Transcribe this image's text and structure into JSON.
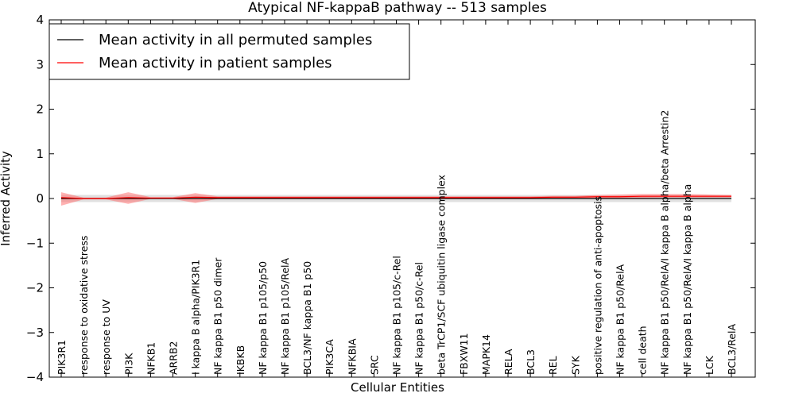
{
  "chart_data": {
    "type": "line",
    "title": "Atypical NF-kappaB pathway -- 513 samples",
    "xlabel": "Cellular Entities",
    "ylabel": "Inferred Activity",
    "ylim": [
      -4,
      4
    ],
    "yticks": [
      "−4",
      "−3",
      "−2",
      "−1",
      "0",
      "1",
      "2",
      "3",
      "4"
    ],
    "legend_position": "top-left",
    "zero_line": "dotted",
    "categories": [
      "PIK3R1",
      "response to oxidative stress",
      "response to UV",
      "PI3K",
      "NFKB1",
      "ARRB2",
      "I kappa B alpha/PIK3R1",
      "NF kappa B1 p50 dimer",
      "IKBKB",
      "NF kappa B1 p105/p50",
      "NF kappa B1 p105/RelA",
      "BCL3/NF kappa B1 p50",
      "PIK3CA",
      "NFKBIA",
      "SRC",
      "NF kappa B1 p105/c-Rel",
      "NF kappa B1 p50/c-Rel",
      "beta TrCP1/SCF ubiquitin ligase complex",
      "FBXW11",
      "MAPK14",
      "RELA",
      "BCL3",
      "REL",
      "SYK",
      "positive regulation of anti-apoptosis",
      "NF kappa B1 p50/RelA",
      "cell death",
      "NF kappa B1 p50/RelA/I kappa B alpha/beta Arrestin2",
      "NF kappa B1 p50/RelA/I kappa B alpha",
      "LCK",
      "BCL3/RelA"
    ],
    "series": [
      {
        "name": "Mean activity in all permuted samples",
        "color": "#000000",
        "values": [
          0,
          0,
          0,
          0,
          0,
          0,
          0,
          0,
          0,
          0,
          0,
          0,
          0,
          0,
          0,
          0,
          0,
          0,
          0,
          0,
          0,
          0,
          0,
          0,
          0,
          0,
          0,
          0,
          0,
          0,
          0
        ],
        "band_low": [
          -0.08,
          -0.08,
          -0.08,
          -0.08,
          -0.08,
          -0.08,
          -0.08,
          -0.08,
          -0.08,
          -0.08,
          -0.08,
          -0.08,
          -0.08,
          -0.08,
          -0.08,
          -0.08,
          -0.08,
          -0.08,
          -0.08,
          -0.08,
          -0.08,
          -0.08,
          -0.08,
          -0.08,
          -0.08,
          -0.08,
          -0.08,
          -0.08,
          -0.08,
          -0.08,
          -0.08
        ],
        "band_high": [
          0.08,
          0.08,
          0.08,
          0.08,
          0.08,
          0.08,
          0.08,
          0.08,
          0.08,
          0.08,
          0.08,
          0.08,
          0.08,
          0.08,
          0.08,
          0.08,
          0.08,
          0.08,
          0.08,
          0.08,
          0.08,
          0.08,
          0.08,
          0.08,
          0.08,
          0.08,
          0.08,
          0.08,
          0.08,
          0.08,
          0.08
        ],
        "band_color": "#aaaaaa"
      },
      {
        "name": "Mean activity in patient samples",
        "color": "#ff0000",
        "values": [
          0.02,
          0.0,
          0.0,
          0.02,
          0.01,
          0.01,
          0.03,
          0.02,
          0.02,
          0.02,
          0.02,
          0.02,
          0.02,
          0.02,
          0.02,
          0.02,
          0.02,
          0.02,
          0.02,
          0.02,
          0.02,
          0.02,
          0.03,
          0.03,
          0.04,
          0.04,
          0.05,
          0.05,
          0.05,
          0.05,
          0.05
        ],
        "band_low": [
          -0.16,
          -0.02,
          -0.02,
          -0.12,
          -0.01,
          -0.01,
          -0.1,
          -0.01,
          -0.01,
          0.0,
          0.0,
          0.0,
          0.0,
          0.0,
          0.0,
          0.0,
          0.0,
          0.0,
          0.0,
          0.0,
          0.0,
          0.0,
          0.01,
          0.01,
          0.01,
          0.01,
          0.01,
          0.02,
          0.02,
          0.02,
          0.02
        ],
        "band_high": [
          0.14,
          0.02,
          0.02,
          0.14,
          0.03,
          0.03,
          0.12,
          0.05,
          0.05,
          0.05,
          0.05,
          0.05,
          0.05,
          0.05,
          0.05,
          0.05,
          0.05,
          0.05,
          0.05,
          0.05,
          0.05,
          0.05,
          0.06,
          0.06,
          0.08,
          0.09,
          0.1,
          0.1,
          0.1,
          0.09,
          0.08
        ],
        "band_color": "#ff6666"
      }
    ]
  }
}
